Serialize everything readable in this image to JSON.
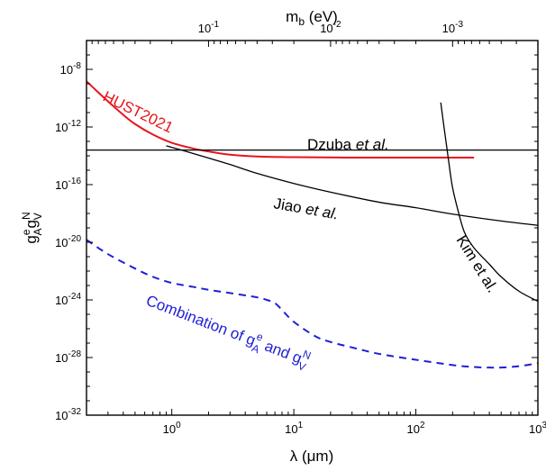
{
  "chart_data": {
    "type": "line",
    "title": "",
    "xlabel": "λ (μm)",
    "ylabel": "g_A^e g_V^N",
    "top_xlabel": "m_b (eV)",
    "x_scale": "log",
    "y_scale": "log",
    "xlim": [
      0.2,
      1000
    ],
    "ylim": [
      1e-32,
      1e-06
    ],
    "grid": false,
    "x_ticks": [
      {
        "value": 1,
        "base": "10",
        "exp": "0"
      },
      {
        "value": 10,
        "base": "10",
        "exp": "1"
      },
      {
        "value": 100,
        "base": "10",
        "exp": "2"
      },
      {
        "value": 1000,
        "base": "10",
        "exp": "3"
      }
    ],
    "y_ticks": [
      {
        "value": 1e-32,
        "base": "10",
        "exp": "-32"
      },
      {
        "value": 1e-28,
        "base": "10",
        "exp": "-28"
      },
      {
        "value": 1e-24,
        "base": "10",
        "exp": "-24"
      },
      {
        "value": 1e-20,
        "base": "10",
        "exp": "-20"
      },
      {
        "value": 1e-16,
        "base": "10",
        "exp": "-16"
      },
      {
        "value": 1e-12,
        "base": "10",
        "exp": "-12"
      },
      {
        "value": 1e-08,
        "base": "10",
        "exp": "-8"
      }
    ],
    "top_ticks": [
      {
        "lambda": 2,
        "base": "10",
        "exp": "-1"
      },
      {
        "lambda": 20,
        "base": "10",
        "exp": "-2"
      },
      {
        "lambda": 200,
        "base": "10",
        "exp": "-3"
      }
    ],
    "series": [
      {
        "name": "HUST2021",
        "color": "#e8141b",
        "style": "solid",
        "x": [
          0.2,
          0.25,
          0.3,
          0.4,
          0.5,
          0.7,
          1,
          1.5,
          2,
          3,
          5,
          10,
          30,
          100,
          300
        ],
        "y": [
          1.5e-09,
          2.5e-10,
          6e-11,
          7e-12,
          1.6e-12,
          3e-13,
          8e-14,
          3.2e-14,
          2e-14,
          1.2e-14,
          9e-15,
          8e-15,
          7.5e-15,
          7.5e-15,
          7.5e-15
        ]
      },
      {
        "name": "Dzuba et al.",
        "color": "#000000",
        "style": "solid",
        "x": [
          0.2,
          1000
        ],
        "y": [
          2.5e-14,
          2.5e-14
        ]
      },
      {
        "name": "Jiao et al.",
        "color": "#000000",
        "style": "solid",
        "x": [
          0.9,
          1.2,
          2,
          3,
          5,
          10,
          20,
          50,
          100,
          200,
          500,
          1000
        ],
        "y": [
          5e-14,
          2.5e-14,
          7e-15,
          2.5e-15,
          6e-16,
          1.2e-16,
          3e-17,
          6e-18,
          2.5e-18,
          9e-19,
          3e-19,
          1.5e-19
        ]
      },
      {
        "name": "Kim et al.",
        "color": "#000000",
        "style": "solid",
        "x": [
          160,
          170,
          180,
          190,
          200,
          220,
          250,
          300,
          400,
          500,
          700,
          1000
        ],
        "y": [
          5e-11,
          1e-12,
          3e-14,
          1e-15,
          6e-17,
          2e-18,
          5e-20,
          4e-21,
          3e-22,
          4e-23,
          4e-24,
          8e-25
        ]
      },
      {
        "name": "Combination of g_A^e and g_V^N",
        "color": "#1f1fd6",
        "style": "dashed",
        "x": [
          0.2,
          0.3,
          0.5,
          0.7,
          1,
          1.5,
          2,
          3,
          5,
          6,
          7,
          8,
          10,
          15,
          20,
          30,
          50,
          100,
          200,
          300,
          400,
          500,
          700,
          1000
        ],
        "y": [
          1.5e-20,
          1.5e-21,
          1.5e-22,
          4e-23,
          1.5e-23,
          8e-24,
          5e-24,
          3e-24,
          1.5e-24,
          1e-24,
          6e-25,
          2e-25,
          3e-26,
          3e-27,
          1.2e-27,
          5e-28,
          1.8e-28,
          7e-29,
          3e-29,
          2.2e-29,
          2e-29,
          2e-29,
          2.5e-29,
          4e-29
        ]
      }
    ],
    "annotations": {
      "hust": "HUST2021",
      "dzuba_name": "Dzuba ",
      "dzuba_etal": "et al.",
      "jiao_name": "Jiao ",
      "jiao_etal": "et al.",
      "kim": "Kim et al.",
      "combo_prefix": "Combination of g",
      "combo_mid": " and g",
      "sub_A": "A",
      "sub_V": "V",
      "sup_e": "e",
      "sup_N": "N"
    }
  }
}
